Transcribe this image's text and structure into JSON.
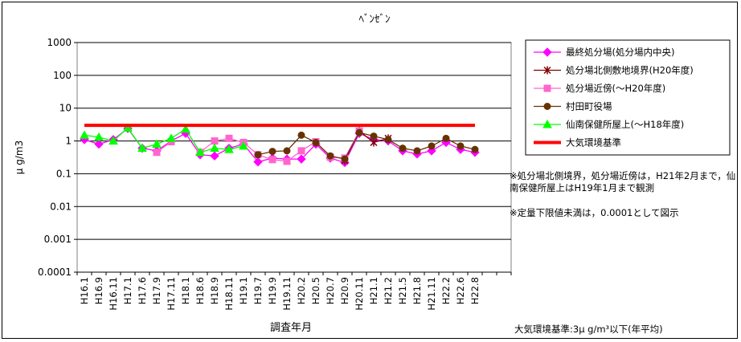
{
  "chart_data": {
    "type": "line",
    "title": "ﾍﾞﾝｾﾞﾝ",
    "xlabel": "調査年月",
    "ylabel": "μ g/m3",
    "y_scale": "log",
    "ylim": [
      0.0001,
      1000
    ],
    "yticks": [
      "1000",
      "100",
      "10",
      "1",
      "0.1",
      "0.01",
      "0.001",
      "0.0001"
    ],
    "categories": [
      "H16.1",
      "H16.9",
      "H16.11",
      "H17.1",
      "H17.6",
      "H17.9",
      "H17.11",
      "H18.1",
      "H18.6",
      "H18.9",
      "H18.11",
      "H19.1",
      "H19.7",
      "H19.9",
      "H19.11",
      "H20.2",
      "H20.5",
      "H20.7",
      "H20.9",
      "H20.11",
      "H21.1",
      "H21.2",
      "H21.5",
      "H21.8",
      "H21.11",
      "H22.2",
      "H22.6",
      "H22.8",
      "",
      ""
    ],
    "series": [
      {
        "name": "最終処分場(処分場内中央)",
        "color": "#ff00ff",
        "marker": "diamond",
        "values": [
          1.1,
          0.8,
          1.1,
          2.4,
          0.6,
          0.5,
          1.0,
          1.7,
          0.38,
          0.35,
          0.6,
          0.8,
          0.23,
          0.3,
          0.28,
          0.28,
          0.8,
          0.3,
          0.22,
          1.7,
          1.1,
          1.0,
          0.5,
          0.4,
          0.5,
          0.9,
          0.55,
          0.45,
          null,
          null
        ]
      },
      {
        "name": "処分場北側敷地境界(H20年度)",
        "color": "#800000",
        "marker": "x",
        "values": [
          null,
          null,
          null,
          null,
          null,
          null,
          null,
          null,
          null,
          null,
          null,
          null,
          null,
          null,
          null,
          null,
          0.9,
          null,
          0.25,
          2.0,
          0.9,
          1.2,
          null,
          null,
          null,
          null,
          null,
          null,
          null,
          null
        ]
      },
      {
        "name": "処分場近傍(～H20年度)",
        "color": "#ff66cc",
        "marker": "square",
        "values": [
          null,
          null,
          null,
          null,
          null,
          0.45,
          0.95,
          null,
          0.45,
          1.0,
          1.2,
          0.9,
          0.38,
          0.27,
          0.24,
          0.5,
          0.95,
          0.32,
          0.3,
          2.0,
          null,
          null,
          null,
          null,
          null,
          null,
          null,
          null,
          null,
          null
        ]
      },
      {
        "name": "村田町役場",
        "color": "#663300",
        "marker": "circle",
        "values": [
          null,
          null,
          null,
          null,
          null,
          null,
          null,
          null,
          null,
          null,
          null,
          null,
          0.38,
          0.48,
          0.5,
          1.5,
          0.9,
          0.35,
          0.28,
          1.8,
          1.4,
          1.1,
          0.6,
          0.5,
          0.7,
          1.2,
          0.7,
          0.55,
          null,
          null
        ]
      },
      {
        "name": "仙南保健所屋上(～H18年度)",
        "color": "#00ff00",
        "marker": "triangle",
        "values": [
          1.5,
          1.3,
          1.0,
          2.5,
          0.6,
          0.8,
          1.2,
          2.3,
          0.45,
          0.6,
          0.55,
          0.7,
          null,
          null,
          null,
          null,
          null,
          null,
          null,
          null,
          null,
          null,
          null,
          null,
          null,
          null,
          null,
          null,
          null,
          null
        ]
      },
      {
        "name": "大気環境基準",
        "color": "#ff0000",
        "marker": "none",
        "constant": 3
      }
    ],
    "legend_position": "right",
    "grid": "horizontal"
  },
  "notes": [
    "※処分場北側境界，処分場近傍は，H21年2月まで，仙南保健所屋上はH19年1月まで観測",
    "※定量下限値未満は，0.0001として図示"
  ],
  "footnote": "大気環境基準:3μ g/m³以下(年平均)"
}
